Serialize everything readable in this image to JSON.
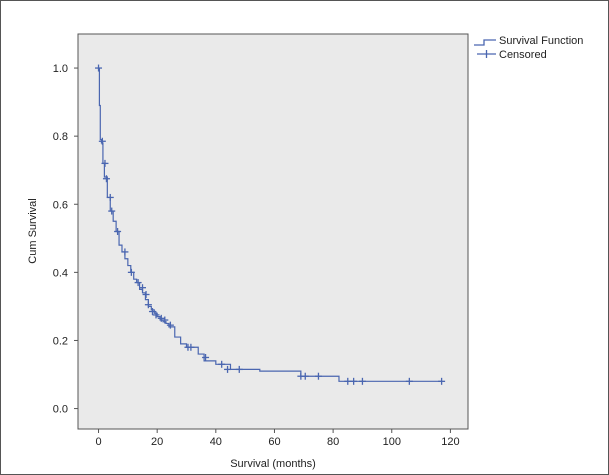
{
  "chart_data": {
    "type": "line",
    "title": "",
    "xlabel": "Survival (months)",
    "ylabel": "Cum Survival",
    "xlim": [
      -7,
      126
    ],
    "ylim": [
      -0.06,
      1.1
    ],
    "xticks": [
      0,
      20,
      40,
      60,
      80,
      100,
      120
    ],
    "yticks": [
      0.0,
      0.2,
      0.4,
      0.6,
      0.8,
      1.0
    ],
    "grid": false,
    "legend_position": "top-right",
    "colors": {
      "series": "#4a66b0",
      "plot_background": "#eaeaea",
      "frame": "#555555"
    },
    "series": [
      {
        "name": "Survival Function",
        "type": "step",
        "x": [
          0,
          0.3,
          0.6,
          1.0,
          1.5,
          2.0,
          3.0,
          4.0,
          5.0,
          6.0,
          7.0,
          8.0,
          9.0,
          10.0,
          11.0,
          12.0,
          13.0,
          14.0,
          15.0,
          16.0,
          17.0,
          18.0,
          19.0,
          20.0,
          21.0,
          22.0,
          23.0,
          24.0,
          26.0,
          28.0,
          30.0,
          34.0,
          36.0,
          40.0,
          45.0,
          55.0,
          69.0,
          82.0,
          117.0
        ],
        "y": [
          1.0,
          0.89,
          0.79,
          0.78,
          0.72,
          0.68,
          0.62,
          0.58,
          0.55,
          0.52,
          0.48,
          0.46,
          0.44,
          0.42,
          0.4,
          0.38,
          0.37,
          0.35,
          0.34,
          0.32,
          0.3,
          0.29,
          0.28,
          0.27,
          0.26,
          0.255,
          0.25,
          0.24,
          0.21,
          0.19,
          0.18,
          0.16,
          0.14,
          0.13,
          0.115,
          0.11,
          0.095,
          0.08,
          0.08
        ]
      },
      {
        "name": "Censored",
        "type": "marker",
        "x": [
          0,
          1.3,
          2.2,
          2.7,
          4.0,
          4.5,
          6.5,
          9.0,
          11.2,
          13.5,
          15.0,
          16.2,
          17.0,
          18.4,
          19.6,
          21.4,
          22.6,
          24.5,
          30.5,
          31.5,
          36.5,
          42.0,
          44.0,
          48.0,
          69.0,
          70.5,
          75.0,
          85.0,
          87.0,
          90.0,
          106.0,
          117.0
        ],
        "y": [
          1.0,
          0.785,
          0.72,
          0.675,
          0.62,
          0.58,
          0.52,
          0.46,
          0.4,
          0.37,
          0.355,
          0.335,
          0.305,
          0.285,
          0.275,
          0.265,
          0.26,
          0.245,
          0.18,
          0.18,
          0.15,
          0.13,
          0.115,
          0.115,
          0.095,
          0.095,
          0.095,
          0.08,
          0.08,
          0.08,
          0.08,
          0.08
        ]
      }
    ]
  }
}
